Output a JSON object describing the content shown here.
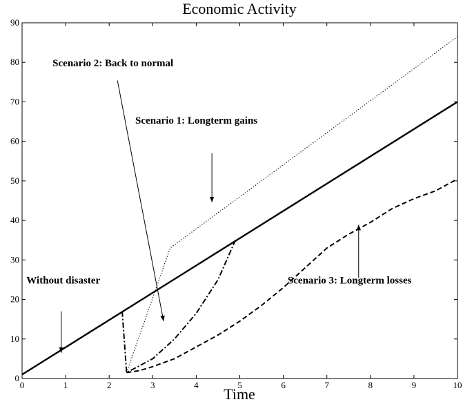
{
  "chart_data": {
    "type": "line",
    "title": "Economic Activity",
    "x_label": "Time",
    "xlim": [
      0,
      10
    ],
    "ylim": [
      0,
      90
    ],
    "xticks": [
      0,
      1,
      2,
      3,
      4,
      5,
      6,
      7,
      8,
      9,
      10
    ],
    "yticks": [
      0,
      10,
      20,
      30,
      40,
      50,
      60,
      70,
      80,
      90
    ],
    "grid": false,
    "series": [
      {
        "name": "Without disaster",
        "color": "#000000",
        "style": "solid",
        "x": [
          0,
          10
        ],
        "values": [
          1,
          70
        ]
      },
      {
        "name": "Scenario 1: Longterm gains",
        "color": "#000000",
        "style": "dotted",
        "x": [
          2.4,
          3.4,
          10
        ],
        "values": [
          1.5,
          33,
          86.5
        ]
      },
      {
        "name": "Scenario 2: Back to normal",
        "color": "#000000",
        "style": "dashdot",
        "x": [
          2.3,
          2.4,
          3,
          3.5,
          4,
          4.5,
          4.9
        ],
        "values": [
          17,
          1.5,
          5,
          10,
          16.5,
          25,
          35
        ]
      },
      {
        "name": "Scenario 3: Longterm losses",
        "color": "#000000",
        "style": "dashed",
        "x": [
          2.4,
          2.7,
          3,
          3.5,
          4,
          4.5,
          5,
          5.5,
          6,
          6.5,
          7,
          7.5,
          8,
          8.5,
          9,
          9.5,
          10
        ],
        "values": [
          1.5,
          2,
          3,
          5,
          8,
          11,
          14.5,
          18.5,
          23,
          28,
          33,
          36.5,
          39.5,
          43,
          45.5,
          47.5,
          50.5
        ]
      }
    ]
  }
}
